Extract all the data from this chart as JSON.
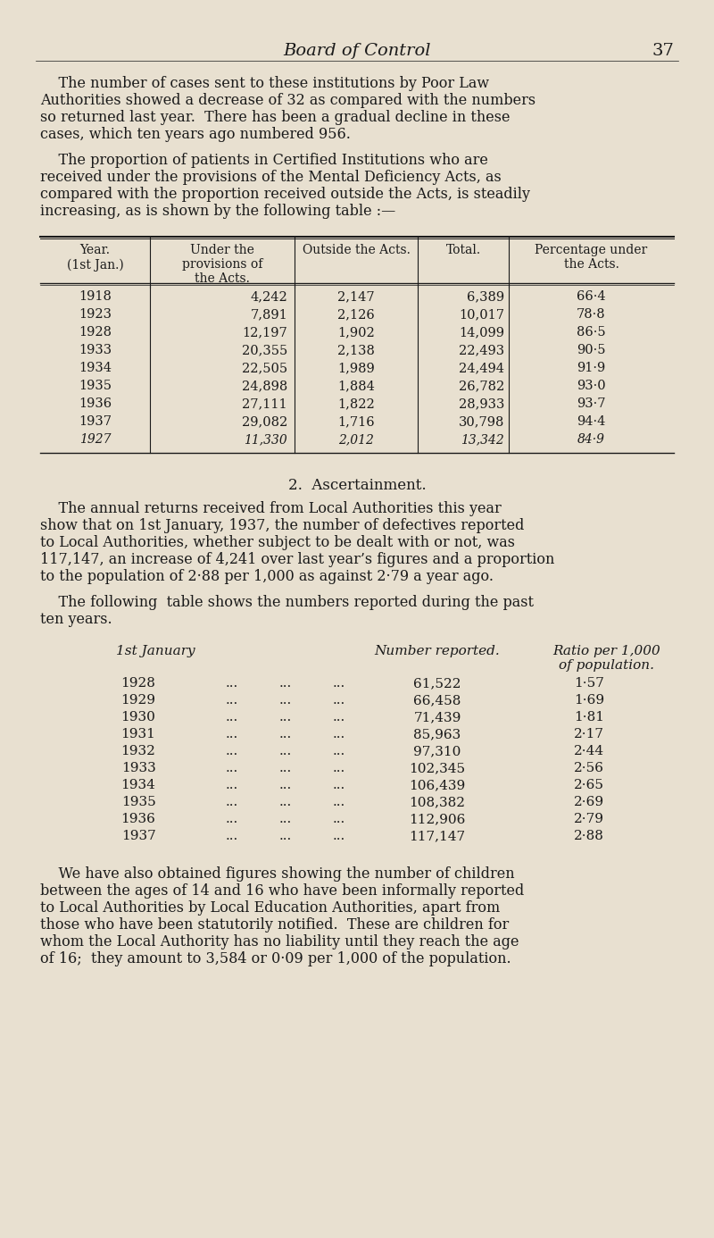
{
  "bg_color": "#e8e0d0",
  "text_color": "#1a1a1a",
  "page_title": "Board of Control",
  "page_number": "37",
  "para1": "The number of cases sent to these institutions by Poor Law Authorities showed a decrease of 32 as compared with the numbers so returned last year.  There has been a gradual decline in these cases, which ten years ago numbered 956.",
  "para2": "The proportion of patients in Certified Institutions who are received under the provisions of the Mental Deficiency Acts, as compared with the proportion received outside the Acts, is steadily increasing, as is shown by the following table :—",
  "table1_headers": [
    "Year.\n(1st Jan.)",
    "Under the\nprovisions of\nthe Acts.",
    "Outside the Acts.",
    "Total.",
    "Percentage under\nthe Acts."
  ],
  "table1_data": [
    [
      "1918",
      "4,242",
      "2,147",
      "6,389",
      "66·4"
    ],
    [
      "1923",
      "7,891",
      "2,126",
      "10,017",
      "78·8"
    ],
    [
      "1928",
      "12,197",
      "1,902",
      "14,099",
      "86·5"
    ],
    [
      "1933",
      "20,355",
      "2,138",
      "22,493",
      "90·5"
    ],
    [
      "1934",
      "22,505",
      "1,989",
      "24,494",
      "91·9"
    ],
    [
      "1935",
      "24,898",
      "1,884",
      "26,782",
      "93·0"
    ],
    [
      "1936",
      "27,111",
      "1,822",
      "28,933",
      "93·7"
    ],
    [
      "1937",
      "29,082",
      "1,716",
      "30,798",
      "94·4"
    ],
    [
      "1927",
      "11,330",
      "2,012",
      "13,342",
      "84·9"
    ]
  ],
  "table1_last_row_italic": true,
  "section2_title": "2.  Ascertainment.",
  "para3": "The annual returns received from Local Authorities this year show that on 1st January, 1937, the number of defectives reported to Local Authorities, whether subject to be dealt with or not, was 117,147, an increase of 4,241 over last year’s figures and a proportion to the population of 2·88 per 1,000 as against 2·79 a year ago.",
  "para4": "The following table shows the numbers reported during the past ten years.",
  "table2_header1": "1st January",
  "table2_header2": "Number reported.",
  "table2_header3": "Ratio per 1,000\nof population.",
  "table2_data": [
    [
      "1928",
      "...",
      "...",
      "...",
      "61,522",
      "1·57"
    ],
    [
      "1929",
      "...",
      "...",
      "...",
      "66,458",
      "1·69"
    ],
    [
      "1930",
      "...",
      "...",
      "...",
      "71,439",
      "1·81"
    ],
    [
      "1931",
      "...",
      "...",
      "...",
      "85,963",
      "2·17"
    ],
    [
      "1932",
      "...",
      "...",
      "...",
      "97,310",
      "2·44"
    ],
    [
      "1933",
      "...",
      "...",
      "...",
      "102,345",
      "2·56"
    ],
    [
      "1934",
      "...",
      "...",
      "...",
      "106,439",
      "2·65"
    ],
    [
      "1935",
      "...",
      "...",
      "...",
      "108,382",
      "2·69"
    ],
    [
      "1936",
      "...",
      "...",
      "...",
      "112,906",
      "2·79"
    ],
    [
      "1937",
      "...",
      "...",
      "...",
      "117,147",
      "2·88"
    ]
  ],
  "para5": "We have also obtained figures showing the number of children between the ages of 14 and 16 who have been informally reported to Local Authorities by Local Education Authorities, apart from those who have been statutorily notified.  These are children for whom the Local Authority has no liability until they reach the age of 16;  they amount to 3,584 or 0·09 per 1,000 of the population."
}
